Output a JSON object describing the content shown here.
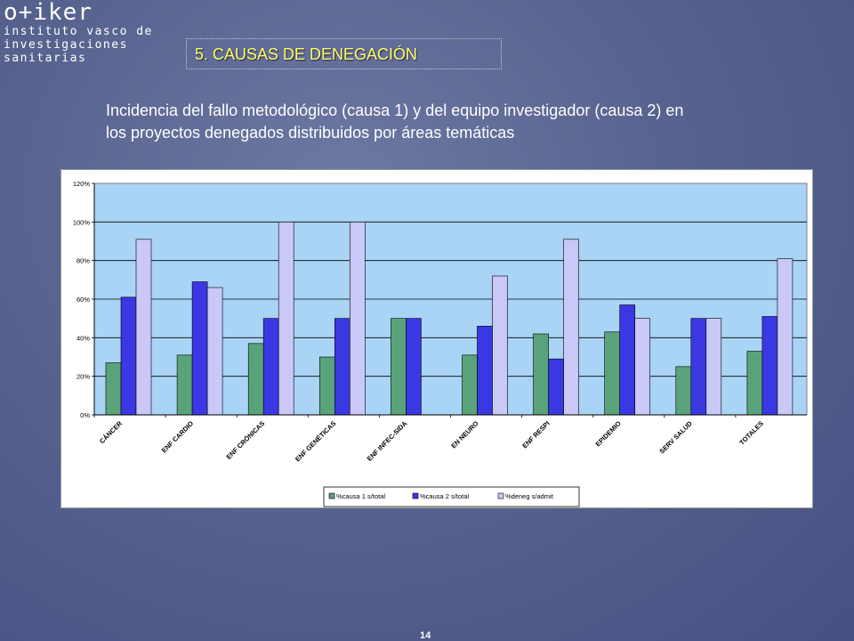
{
  "logo": {
    "mark": "o+iker",
    "lines": [
      "instituto vasco de",
      "investigaciones",
      "sanitarias"
    ]
  },
  "slide": {
    "title": "5. CAUSAS DE DENEGACIÓN",
    "subtitle_line1": "Incidencia del fallo metodológico (causa 1) y del equipo investigador (causa 2) en",
    "subtitle_line2": "los proyectos denegados distribuidos por áreas temáticas",
    "page_number": "14"
  },
  "colors": {
    "plot_bg": "#a9d4f5",
    "series": [
      "#5aa37a",
      "#3a38e2",
      "#c9c8f6"
    ]
  },
  "chart_data": {
    "type": "bar",
    "title": "",
    "xlabel": "",
    "ylabel": "",
    "ylim": [
      0,
      120
    ],
    "yticks": [
      "0%",
      "20%",
      "40%",
      "60%",
      "80%",
      "100%",
      "120%"
    ],
    "grid": true,
    "legend_position": "bottom",
    "categories": [
      "CÁNCER",
      "ENF CARDIO",
      "ENF CRÓNICAS",
      "ENF GENÉTICAS",
      "ENF INFEC-SIDA",
      "EN NEURO",
      "ENF RESPI",
      "EPIDEMIO",
      "SERV SALUD",
      "TOTALES"
    ],
    "series": [
      {
        "name": "%causa 1 s/total",
        "values": [
          27,
          31,
          37,
          30,
          50,
          31,
          42,
          43,
          25,
          33
        ]
      },
      {
        "name": "%causa 2 s/total",
        "values": [
          61,
          69,
          50,
          50,
          50,
          46,
          29,
          57,
          50,
          51
        ]
      },
      {
        "name": "%deneg s/admit",
        "values": [
          91,
          66,
          100,
          100,
          0,
          72,
          91,
          50,
          50,
          81
        ]
      }
    ]
  }
}
